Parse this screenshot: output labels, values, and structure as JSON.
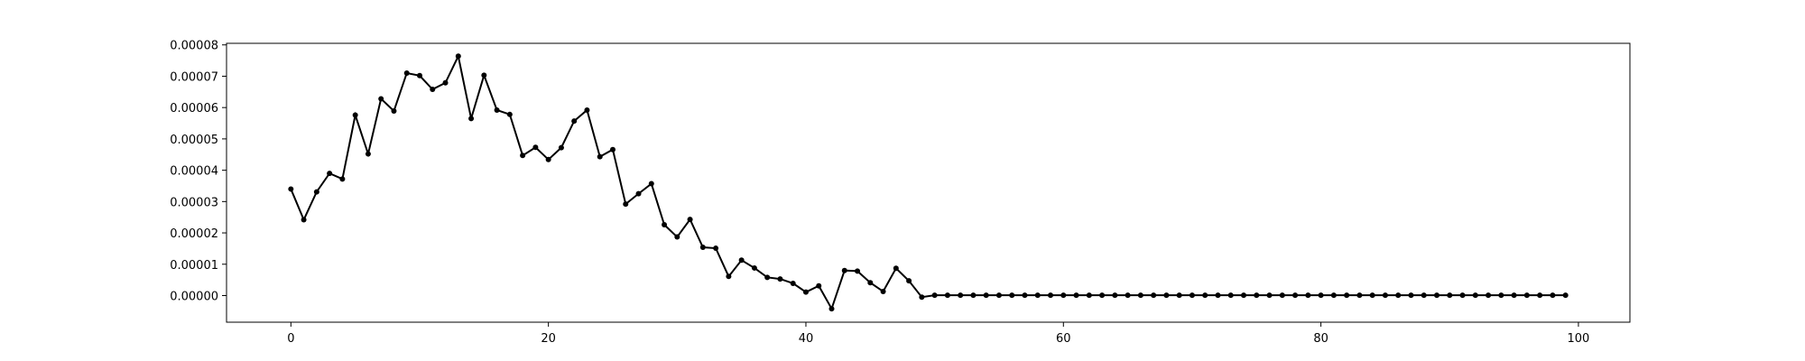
{
  "chart_data": {
    "type": "line",
    "title": "",
    "xlabel": "",
    "ylabel": "",
    "xlim": [
      -5,
      104
    ],
    "ylim": [
      -8.5e-06,
      8.05e-05
    ],
    "xticks": [
      0,
      20,
      40,
      60,
      80,
      100
    ],
    "xtick_labels": [
      "0",
      "20",
      "40",
      "60",
      "80",
      "100"
    ],
    "yticks": [
      0,
      1e-05,
      2e-05,
      3e-05,
      4e-05,
      5e-05,
      6e-05,
      7e-05,
      8e-05
    ],
    "ytick_labels": [
      "0.00000",
      "0.00001",
      "0.00002",
      "0.00003",
      "0.00004",
      "0.00005",
      "0.00006",
      "0.00007",
      "0.00008"
    ],
    "grid": false,
    "line_color": "#000000",
    "marker": "dot",
    "series": [
      {
        "x": [
          0,
          1,
          2,
          3,
          4,
          5,
          6,
          7,
          8,
          9,
          10,
          11,
          12,
          13,
          14,
          15,
          16,
          17,
          18,
          19,
          20,
          21,
          22,
          23,
          24,
          25,
          26,
          27,
          28,
          29,
          30,
          31,
          32,
          33,
          34,
          35,
          36,
          37,
          38,
          39,
          40,
          41,
          42,
          43,
          44,
          45,
          46,
          47,
          48,
          49,
          50,
          51,
          52,
          53,
          54,
          55,
          56,
          57,
          58,
          59,
          60,
          61,
          62,
          63,
          64,
          65,
          66,
          67,
          68,
          69,
          70,
          71,
          72,
          73,
          74,
          75,
          76,
          77,
          78,
          79,
          80,
          81,
          82,
          83,
          84,
          85,
          86,
          87,
          88,
          89,
          90,
          91,
          92,
          93,
          94,
          95,
          96,
          97,
          98,
          99
        ],
        "values": [
          3.4e-05,
          2.42e-05,
          3.31e-05,
          3.9e-05,
          3.72e-05,
          5.76e-05,
          4.52e-05,
          6.28e-05,
          5.89e-05,
          7.1e-05,
          7.02e-05,
          6.58e-05,
          6.79e-05,
          7.64e-05,
          5.65e-05,
          7.03e-05,
          5.92e-05,
          5.78e-05,
          4.47e-05,
          4.73e-05,
          4.34e-05,
          4.72e-05,
          5.57e-05,
          5.92e-05,
          4.43e-05,
          4.66e-05,
          2.92e-05,
          3.25e-05,
          3.57e-05,
          2.26e-05,
          1.87e-05,
          2.43e-05,
          1.54e-05,
          1.51e-05,
          6.1e-06,
          1.13e-05,
          8.8e-06,
          5.8e-06,
          5.3e-06,
          3.9e-06,
          1.1e-06,
          3.1e-06,
          -4.2e-06,
          8e-06,
          7.8e-06,
          4.1e-06,
          1.3e-06,
          8.7e-06,
          4.7e-06,
          -5e-07,
          1e-07,
          1e-07,
          1e-07,
          1e-07,
          1e-07,
          1e-07,
          1e-07,
          1e-07,
          1e-07,
          1e-07,
          1e-07,
          1e-07,
          1e-07,
          1e-07,
          1e-07,
          1e-07,
          1e-07,
          1e-07,
          1e-07,
          1e-07,
          1e-07,
          1e-07,
          1e-07,
          1e-07,
          1e-07,
          1e-07,
          1e-07,
          1e-07,
          1e-07,
          1e-07,
          1e-07,
          1e-07,
          1e-07,
          1e-07,
          1e-07,
          1e-07,
          1e-07,
          1e-07,
          1e-07,
          1e-07,
          1e-07,
          1e-07,
          1e-07,
          1e-07,
          1e-07,
          1e-07,
          1e-07,
          1e-07,
          1e-07,
          1e-07
        ]
      }
    ]
  }
}
